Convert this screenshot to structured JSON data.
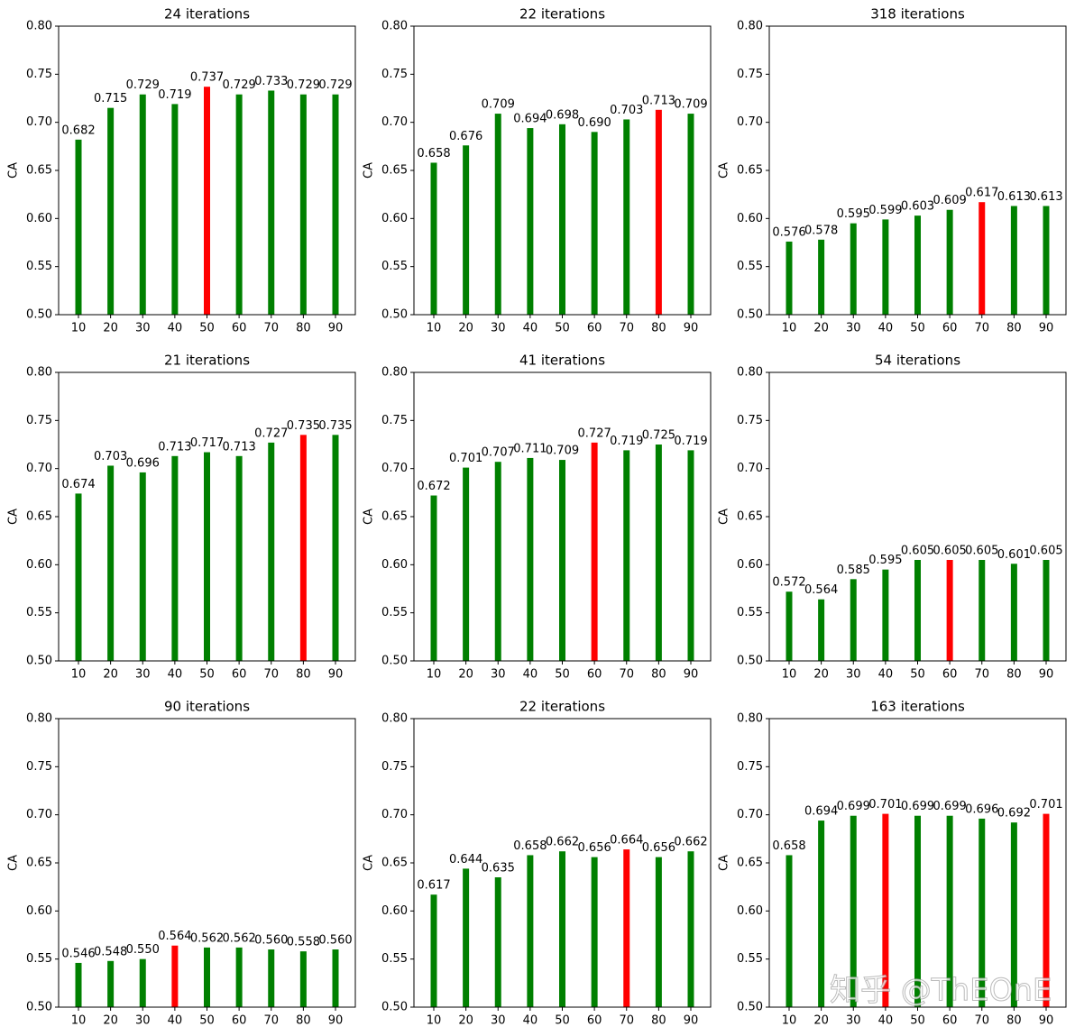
{
  "chart_data": [
    {
      "type": "bar",
      "title": "24 iterations",
      "y_label": "CA",
      "categories": [
        10,
        20,
        30,
        40,
        50,
        60,
        70,
        80,
        90
      ],
      "values": [
        0.682,
        0.715,
        0.729,
        0.719,
        0.737,
        0.729,
        0.733,
        0.729,
        0.729
      ],
      "value_labels": [
        "0.682",
        "0.715",
        "0.729",
        "0.719",
        "0.737",
        "0.729",
        "0.733",
        "0.729",
        "0.729"
      ],
      "colors": [
        "#008000",
        "#008000",
        "#008000",
        "#008000",
        "#ff0000",
        "#008000",
        "#008000",
        "#008000",
        "#008000"
      ],
      "ylim": [
        0.5,
        0.8
      ],
      "yticks": [
        {
          "value": 0.5,
          "label": "0.50"
        },
        0.55,
        {
          "value": 0.6,
          "label": "0.60"
        },
        0.65,
        {
          "value": 0.7,
          "label": "0.70"
        },
        0.75,
        {
          "value": 0.8,
          "label": "0.80"
        }
      ]
    },
    {
      "type": "bar",
      "title": "22 iterations",
      "y_label": "CA",
      "categories": [
        10,
        20,
        30,
        40,
        50,
        60,
        70,
        80,
        90
      ],
      "values": [
        0.658,
        0.676,
        0.709,
        0.694,
        0.698,
        0.69,
        0.703,
        0.713,
        0.709
      ],
      "value_labels": [
        "0.658",
        "0.676",
        "0.709",
        "0.694",
        "0.698",
        "0.690",
        "0.703",
        "0.713",
        "0.709"
      ],
      "colors": [
        "#008000",
        "#008000",
        "#008000",
        "#008000",
        "#008000",
        "#008000",
        "#008000",
        "#ff0000",
        "#008000"
      ],
      "ylim": [
        0.5,
        0.8
      ],
      "yticks": [
        {
          "value": 0.5,
          "label": "0.50"
        },
        0.55,
        {
          "value": 0.6,
          "label": "0.60"
        },
        0.65,
        {
          "value": 0.7,
          "label": "0.70"
        },
        0.75,
        {
          "value": 0.8,
          "label": "0.80"
        }
      ]
    },
    {
      "type": "bar",
      "title": "318 iterations",
      "y_label": "CA",
      "categories": [
        10,
        20,
        30,
        40,
        50,
        60,
        70,
        80,
        90
      ],
      "values": [
        0.576,
        0.578,
        0.595,
        0.599,
        0.603,
        0.609,
        0.617,
        0.613,
        0.613
      ],
      "value_labels": [
        "0.576",
        "0.578",
        "0.595",
        "0.599",
        "0.603",
        "0.609",
        "0.617",
        "0.613",
        "0.613"
      ],
      "colors": [
        "#008000",
        "#008000",
        "#008000",
        "#008000",
        "#008000",
        "#008000",
        "#ff0000",
        "#008000",
        "#008000"
      ],
      "ylim": [
        0.5,
        0.8
      ],
      "yticks": [
        {
          "value": 0.5,
          "label": "0.50"
        },
        0.55,
        {
          "value": 0.6,
          "label": "0.60"
        },
        0.65,
        {
          "value": 0.7,
          "label": "0.70"
        },
        0.75,
        {
          "value": 0.8,
          "label": "0.80"
        }
      ]
    },
    {
      "type": "bar",
      "title": "21 iterations",
      "y_label": "CA",
      "categories": [
        10,
        20,
        30,
        40,
        50,
        60,
        70,
        80,
        90
      ],
      "values": [
        0.674,
        0.703,
        0.696,
        0.713,
        0.717,
        0.713,
        0.727,
        0.735,
        0.735
      ],
      "value_labels": [
        "0.674",
        "0.703",
        "0.696",
        "0.713",
        "0.717",
        "0.713",
        "0.727",
        "0.735",
        "0.735"
      ],
      "colors": [
        "#008000",
        "#008000",
        "#008000",
        "#008000",
        "#008000",
        "#008000",
        "#008000",
        "#ff0000",
        "#008000"
      ],
      "ylim": [
        0.5,
        0.8
      ],
      "yticks": [
        {
          "value": 0.5,
          "label": "0.50"
        },
        0.55,
        {
          "value": 0.6,
          "label": "0.60"
        },
        0.65,
        {
          "value": 0.7,
          "label": "0.70"
        },
        0.75,
        {
          "value": 0.8,
          "label": "0.80"
        }
      ]
    },
    {
      "type": "bar",
      "title": "41 iterations",
      "y_label": "CA",
      "categories": [
        10,
        20,
        30,
        40,
        50,
        60,
        70,
        80,
        90
      ],
      "values": [
        0.672,
        0.701,
        0.707,
        0.711,
        0.709,
        0.727,
        0.719,
        0.725,
        0.719
      ],
      "value_labels": [
        "0.672",
        "0.701",
        "0.707",
        "0.711",
        "0.709",
        "0.727",
        "0.719",
        "0.725",
        "0.719"
      ],
      "colors": [
        "#008000",
        "#008000",
        "#008000",
        "#008000",
        "#008000",
        "#ff0000",
        "#008000",
        "#008000",
        "#008000"
      ],
      "ylim": [
        0.5,
        0.8
      ],
      "yticks": [
        {
          "value": 0.5,
          "label": "0.50"
        },
        0.55,
        {
          "value": 0.6,
          "label": "0.60"
        },
        0.65,
        {
          "value": 0.7,
          "label": "0.70"
        },
        0.75,
        {
          "value": 0.8,
          "label": "0.80"
        }
      ]
    },
    {
      "type": "bar",
      "title": "54 iterations",
      "y_label": "CA",
      "categories": [
        10,
        20,
        30,
        40,
        50,
        60,
        70,
        80,
        90
      ],
      "values": [
        0.572,
        0.564,
        0.585,
        0.595,
        0.605,
        0.605,
        0.605,
        0.601,
        0.605
      ],
      "value_labels": [
        "0.572",
        "0.564",
        "0.585",
        "0.595",
        "0.605",
        "0.605",
        "0.605",
        "0.601",
        "0.605"
      ],
      "colors": [
        "#008000",
        "#008000",
        "#008000",
        "#008000",
        "#008000",
        "#ff0000",
        "#008000",
        "#008000",
        "#008000"
      ],
      "ylim": [
        0.5,
        0.8
      ],
      "yticks": [
        {
          "value": 0.5,
          "label": "0.50"
        },
        0.55,
        {
          "value": 0.6,
          "label": "0.60"
        },
        0.65,
        {
          "value": 0.7,
          "label": "0.70"
        },
        0.75,
        {
          "value": 0.8,
          "label": "0.80"
        }
      ]
    },
    {
      "type": "bar",
      "title": "90 iterations",
      "y_label": "CA",
      "categories": [
        10,
        20,
        30,
        40,
        50,
        60,
        70,
        80,
        90
      ],
      "values": [
        0.546,
        0.548,
        0.55,
        0.564,
        0.562,
        0.562,
        0.56,
        0.558,
        0.56
      ],
      "value_labels": [
        "0.546",
        "0.548",
        "0.550",
        "0.564",
        "0.562",
        "0.562",
        "0.560",
        "0.558",
        "0.560"
      ],
      "colors": [
        "#008000",
        "#008000",
        "#008000",
        "#ff0000",
        "#008000",
        "#008000",
        "#008000",
        "#008000",
        "#008000"
      ],
      "ylim": [
        0.5,
        0.8
      ],
      "yticks": [
        {
          "value": 0.5,
          "label": "0.50"
        },
        0.55,
        {
          "value": 0.6,
          "label": "0.60"
        },
        0.65,
        {
          "value": 0.7,
          "label": "0.70"
        },
        0.75,
        {
          "value": 0.8,
          "label": "0.80"
        }
      ]
    },
    {
      "type": "bar",
      "title": "22 iterations",
      "y_label": "CA",
      "categories": [
        10,
        20,
        30,
        40,
        50,
        60,
        70,
        80,
        90
      ],
      "values": [
        0.617,
        0.644,
        0.635,
        0.658,
        0.662,
        0.656,
        0.664,
        0.656,
        0.662
      ],
      "value_labels": [
        "0.617",
        "0.644",
        "0.635",
        "0.658",
        "0.662",
        "0.656",
        "0.664",
        "0.656",
        "0.662"
      ],
      "colors": [
        "#008000",
        "#008000",
        "#008000",
        "#008000",
        "#008000",
        "#008000",
        "#ff0000",
        "#008000",
        "#008000"
      ],
      "ylim": [
        0.5,
        0.8
      ],
      "yticks": [
        {
          "value": 0.5,
          "label": "0.50"
        },
        0.55,
        {
          "value": 0.6,
          "label": "0.60"
        },
        0.65,
        {
          "value": 0.7,
          "label": "0.70"
        },
        0.75,
        {
          "value": 0.8,
          "label": "0.80"
        }
      ]
    },
    {
      "type": "bar",
      "title": "163 iterations",
      "y_label": "CA",
      "categories": [
        10,
        20,
        30,
        40,
        50,
        60,
        70,
        80,
        90
      ],
      "values": [
        0.658,
        0.694,
        0.699,
        0.701,
        0.699,
        0.699,
        0.696,
        0.692,
        0.701
      ],
      "value_labels": [
        "0.658",
        "0.694",
        "0.699",
        "0.701",
        "0.699",
        "0.699",
        "0.696",
        "0.692",
        "0.701"
      ],
      "colors": [
        "#008000",
        "#008000",
        "#008000",
        "#ff0000",
        "#008000",
        "#008000",
        "#008000",
        "#008000",
        "#ff0000"
      ],
      "ylim": [
        0.5,
        0.8
      ],
      "yticks": [
        {
          "value": 0.5,
          "label": "0.50"
        },
        0.55,
        {
          "value": 0.6,
          "label": "0.60"
        },
        0.65,
        {
          "value": 0.7,
          "label": "0.70"
        },
        0.75,
        {
          "value": 0.8,
          "label": "0.80"
        }
      ]
    }
  ],
  "watermark": "知乎 @ThEOnE"
}
